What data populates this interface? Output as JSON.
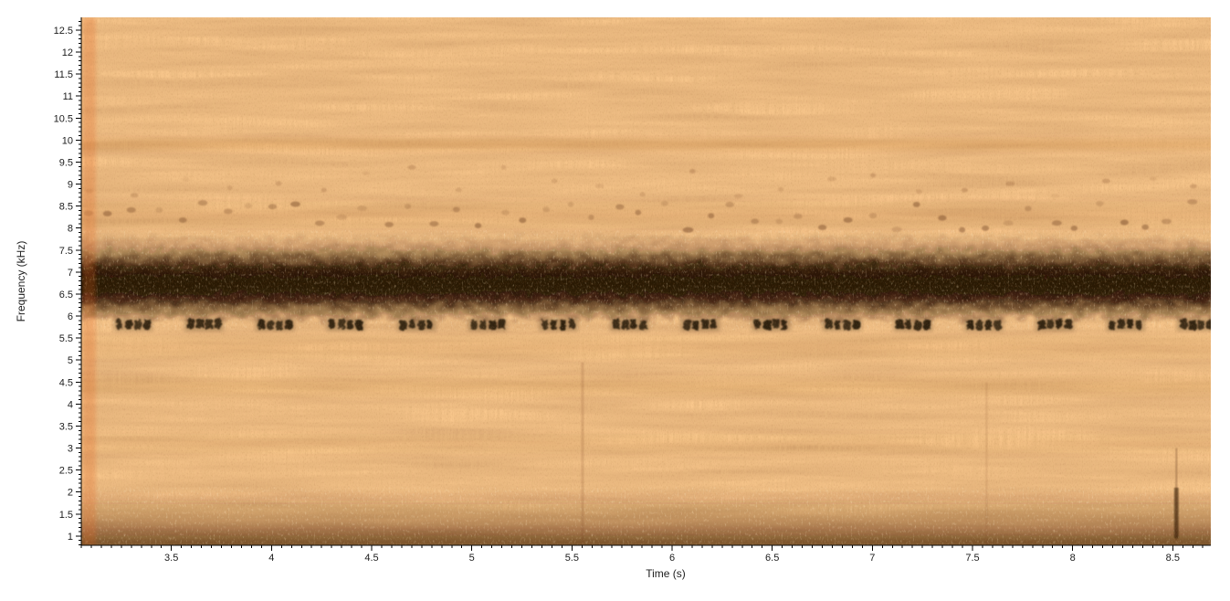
{
  "figure": {
    "background": "#ffffff"
  },
  "chart_data": {
    "type": "heatmap",
    "subtype": "spectrogram",
    "title": "",
    "xlabel": "Time (s)",
    "ylabel": "Frequency (kHz)",
    "xlim": [
      3.05,
      8.69
    ],
    "ylim": [
      0.79,
      12.79
    ],
    "grid": false,
    "legend": null,
    "x_minor_step": 0.05,
    "y_minor_step": 0.1,
    "x_major_ticks": [
      {
        "v": 3.5,
        "label": "3.5"
      },
      {
        "v": 4,
        "label": "4"
      },
      {
        "v": 4.5,
        "label": "4.5"
      },
      {
        "v": 5,
        "label": "5"
      },
      {
        "v": 5.5,
        "label": "5.5"
      },
      {
        "v": 6,
        "label": "6"
      },
      {
        "v": 6.5,
        "label": "6.5"
      },
      {
        "v": 7,
        "label": "7"
      },
      {
        "v": 7.5,
        "label": "7.5"
      },
      {
        "v": 8,
        "label": "8"
      },
      {
        "v": 8.5,
        "label": "8.5"
      }
    ],
    "y_major_ticks": [
      {
        "v": 1,
        "label": "1"
      },
      {
        "v": 1.5,
        "label": "1.5"
      },
      {
        "v": 2,
        "label": "2"
      },
      {
        "v": 2.5,
        "label": "2.5"
      },
      {
        "v": 3,
        "label": "3"
      },
      {
        "v": 3.5,
        "label": "3.5"
      },
      {
        "v": 4,
        "label": "4"
      },
      {
        "v": 4.5,
        "label": "4.5"
      },
      {
        "v": 5,
        "label": "5"
      },
      {
        "v": 5.5,
        "label": "5.5"
      },
      {
        "v": 6,
        "label": "6"
      },
      {
        "v": 6.5,
        "label": "6.5"
      },
      {
        "v": 7,
        "label": "7"
      },
      {
        "v": 7.5,
        "label": "7.5"
      },
      {
        "v": 8,
        "label": "8"
      },
      {
        "v": 8.5,
        "label": "8.5"
      },
      {
        "v": 9,
        "label": "9"
      },
      {
        "v": 9.5,
        "label": "9.5"
      },
      {
        "v": 10,
        "label": "10"
      },
      {
        "v": 10.5,
        "label": "10.5"
      },
      {
        "v": 11,
        "label": "11"
      },
      {
        "v": 11.5,
        "label": "11.5"
      },
      {
        "v": 12,
        "label": "12"
      },
      {
        "v": 12.5,
        "label": "12.5"
      }
    ],
    "colormap": "inverted-hot (light orange = low energy, dark brown/black = high energy)",
    "colors": {
      "base": "#f9c78c",
      "striation": "#cf7a35",
      "patch": "#9c5524",
      "grain": "#73380d",
      "band": "#2a1404",
      "band_core": "#1c0d03",
      "bottom_band": "#4a2208",
      "fleck": "#ffd694",
      "red_edge": "#e25f1e",
      "axis": "#000000",
      "text": "#1c1c1c"
    },
    "features": {
      "description": "Continuous dark broadband tone band centered ~6.7 kHz across all times; periodic dashed pulse train at ~5.8 kHz; faint speckled row ~8.0-8.6 kHz; very faint line ~9.9 kHz; dark low-frequency noise band below ~2 kHz; orange noise floor elsewhere; vertical artifacts near 5.55 s, 7.57 s and a dark streak near 8.52 s; reddish wash at left edge.",
      "h_bands": [
        {
          "name": "upper-speckle-wash",
          "f_lo": 7.9,
          "f_hi": 8.7,
          "color": "#8a4616",
          "stops": [
            [
              0,
              0
            ],
            [
              0.5,
              0.1
            ],
            [
              1,
              0
            ]
          ],
          "blur": 3
        },
        {
          "name": "line-9p9-khz",
          "f_lo": 9.7,
          "f_hi": 10.1,
          "color": "#a8561e",
          "stops": [
            [
              0,
              0
            ],
            [
              0.5,
              0.16
            ],
            [
              1,
              0
            ]
          ],
          "blur": 2
        },
        {
          "name": "band-4p4-khz",
          "f_lo": 4.1,
          "f_hi": 4.7,
          "color": "#a05a28",
          "stops": [
            [
              0,
              0
            ],
            [
              0.5,
              0.09
            ],
            [
              1,
              0
            ]
          ],
          "blur": 3
        },
        {
          "name": "band-5p3-khz",
          "f_lo": 4.95,
          "f_hi": 5.65,
          "color": "#a05a28",
          "stops": [
            [
              0,
              0
            ],
            [
              0.5,
              0.06
            ],
            [
              1,
              0
            ]
          ],
          "blur": 3
        },
        {
          "name": "band-3p1-khz",
          "f_lo": 2.8,
          "f_hi": 3.4,
          "color": "#a05a28",
          "stops": [
            [
              0,
              0
            ],
            [
              0.5,
              0.05
            ],
            [
              1,
              0
            ]
          ],
          "blur": 3
        },
        {
          "name": "low-noise-band",
          "f_lo": 0.79,
          "f_hi": 2.05,
          "color": "#4a2208",
          "stops": [
            [
              0,
              0
            ],
            [
              0.45,
              0.22
            ],
            [
              0.78,
              0.38
            ],
            [
              1,
              0.55
            ]
          ],
          "blur": 1
        },
        {
          "name": "deep-low-strip",
          "f_lo": 0.79,
          "f_hi": 1.3,
          "color": "#3a1a06",
          "stops": [
            [
              0,
              0
            ],
            [
              1,
              0.35
            ]
          ],
          "blur": 2
        },
        {
          "name": "main-tone-halo",
          "f_lo": 5.92,
          "f_hi": 7.85,
          "color": "#2a1404",
          "stops": [
            [
              0,
              0
            ],
            [
              0.16,
              0.22
            ],
            [
              0.38,
              0.88
            ],
            [
              0.6,
              0.96
            ],
            [
              0.8,
              0.72
            ],
            [
              1,
              0.1
            ]
          ],
          "rough": true
        },
        {
          "name": "main-tone-core",
          "f_lo": 6.3,
          "f_hi": 7.12,
          "color": "#1c0d03",
          "stops": [
            [
              0,
              0.1
            ],
            [
              0.3,
              0.55
            ],
            [
              0.7,
              0.55
            ],
            [
              1,
              0.1
            ]
          ],
          "rough": true
        }
      ],
      "fleck_regions": [
        {
          "name": "flecks-in-main-band",
          "f_lo": 5.7,
          "f_hi": 7.95
        },
        {
          "name": "flecks-in-low-band",
          "f_lo": 0.79,
          "f_hi": 2.1
        }
      ],
      "pulse_train": {
        "name": "pulsed-tone-5p8-khz",
        "f_lo": 5.7,
        "f_hi": 5.92,
        "t_start": 3.225,
        "period": 0.354,
        "count": 16,
        "dashes_per_burst": 4,
        "dash_duration": 0.032,
        "dash_gap": 0.013,
        "color": "#170b02",
        "alpha": 0.85
      },
      "speckle_rows": [
        {
          "name": "harmonic-speckles-8p2",
          "f_lo": 7.95,
          "f_hi": 8.6,
          "t_start": 3.08,
          "step": 0.115,
          "rx": 4.5,
          "ry": 3,
          "color": "#5f3012",
          "a_min": 0.12,
          "a_max": 0.42
        },
        {
          "name": "harmonic-speckles-9p0",
          "f_lo": 8.7,
          "f_hi": 9.45,
          "t_start": 3.1,
          "step": 0.23,
          "rx": 4,
          "ry": 2.5,
          "color": "#6a3614",
          "a_min": 0.06,
          "a_max": 0.22
        }
      ],
      "v_streaks": [
        {
          "name": "artifact-5p55s",
          "t": 5.553,
          "f_lo": 0.79,
          "f_hi": 4.95,
          "w": 3,
          "alpha": 0.15,
          "color": "#6e3312",
          "blur": 1
        },
        {
          "name": "artifact-7p57s",
          "t": 7.57,
          "f_lo": 0.79,
          "f_hi": 4.5,
          "w": 2.5,
          "alpha": 0.1,
          "color": "#6e3312",
          "blur": 1
        },
        {
          "name": "artifact-8p52s-line",
          "t": 8.518,
          "f_lo": 0.9,
          "f_hi": 3.0,
          "w": 2,
          "alpha": 0.3,
          "color": "#4a2008",
          "blur": 1
        },
        {
          "name": "artifact-8p52s-blob",
          "t": 8.518,
          "f_lo": 0.95,
          "f_hi": 2.1,
          "w": 5,
          "alpha": 0.55,
          "color": "#2e1405",
          "blur": 1
        },
        {
          "name": "left-edge-red-wash",
          "t": 3.09,
          "f_lo": 0.79,
          "f_hi": 12.79,
          "w": 14,
          "alpha": 0.25,
          "color": "#e25f1e",
          "blur": 2
        }
      ]
    }
  }
}
